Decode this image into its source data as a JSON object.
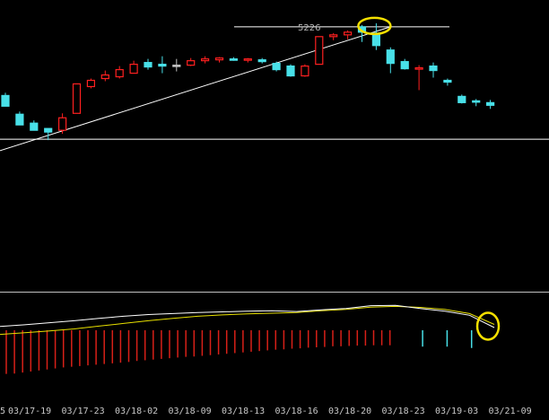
{
  "chart_data": {
    "type": "candlestick",
    "title": "",
    "xlabel": "",
    "ylabel": "",
    "ylim": [
      4920,
      5240
    ],
    "grid": false,
    "price_peak_label": "5226",
    "x_ticks": [
      "03/17-19",
      "03/17-23",
      "03/18-02",
      "03/18-09",
      "03/18-13",
      "03/18-16",
      "03/18-20",
      "03/18-23",
      "03/19-03",
      "03/21-09"
    ],
    "x_tick_left_fragment": "5",
    "reference_levels": [
      5222,
      5096
    ],
    "trendline": {
      "from": {
        "index": -1,
        "price": 5080
      },
      "to": {
        "index": 27,
        "price": 5222
      }
    },
    "candles": [
      {
        "o": 5145,
        "h": 5148,
        "l": 5133,
        "c": 5133
      },
      {
        "o": 5124,
        "h": 5127,
        "l": 5112,
        "c": 5112
      },
      {
        "o": 5114,
        "h": 5117,
        "l": 5106,
        "c": 5106
      },
      {
        "o": 5108,
        "h": 5108,
        "l": 5095,
        "c": 5104
      },
      {
        "o": 5106,
        "h": 5125,
        "l": 5102,
        "c": 5120
      },
      {
        "o": 5125,
        "h": 5158,
        "l": 5125,
        "c": 5158
      },
      {
        "o": 5155,
        "h": 5164,
        "l": 5153,
        "c": 5162
      },
      {
        "o": 5164,
        "h": 5173,
        "l": 5161,
        "c": 5168
      },
      {
        "o": 5166,
        "h": 5178,
        "l": 5164,
        "c": 5174
      },
      {
        "o": 5170,
        "h": 5184,
        "l": 5170,
        "c": 5180
      },
      {
        "o": 5182,
        "h": 5186,
        "l": 5174,
        "c": 5177
      },
      {
        "o": 5180,
        "h": 5189,
        "l": 5170,
        "c": 5178
      },
      {
        "o": 5179,
        "h": 5186,
        "l": 5172,
        "c": 5179
      },
      {
        "o": 5179,
        "h": 5187,
        "l": 5178,
        "c": 5184
      },
      {
        "o": 5184,
        "h": 5189,
        "l": 5181,
        "c": 5186
      },
      {
        "o": 5185,
        "h": 5188,
        "l": 5182,
        "c": 5187
      },
      {
        "o": 5186,
        "h": 5188,
        "l": 5184,
        "c": 5185
      },
      {
        "o": 5185,
        "h": 5187,
        "l": 5182,
        "c": 5186
      },
      {
        "o": 5185,
        "h": 5187,
        "l": 5181,
        "c": 5183
      },
      {
        "o": 5181,
        "h": 5183,
        "l": 5172,
        "c": 5174
      },
      {
        "o": 5178,
        "h": 5180,
        "l": 5166,
        "c": 5167
      },
      {
        "o": 5167,
        "h": 5180,
        "l": 5166,
        "c": 5178
      },
      {
        "o": 5180,
        "h": 5211,
        "l": 5180,
        "c": 5211
      },
      {
        "o": 5211,
        "h": 5215,
        "l": 5207,
        "c": 5213
      },
      {
        "o": 5213,
        "h": 5218,
        "l": 5208,
        "c": 5216
      },
      {
        "o": 5222,
        "h": 5224,
        "l": 5205,
        "c": 5216
      },
      {
        "o": 5215,
        "h": 5226,
        "l": 5196,
        "c": 5201
      },
      {
        "o": 5196,
        "h": 5199,
        "l": 5170,
        "c": 5181
      },
      {
        "o": 5183,
        "h": 5186,
        "l": 5174,
        "c": 5175
      },
      {
        "o": 5175,
        "h": 5179,
        "l": 5151,
        "c": 5176
      },
      {
        "o": 5178,
        "h": 5182,
        "l": 5165,
        "c": 5173
      },
      {
        "o": 5162,
        "h": 5164,
        "l": 5156,
        "c": 5160
      },
      {
        "o": 5144,
        "h": 5146,
        "l": 5136,
        "c": 5137
      },
      {
        "o": 5139,
        "h": 5141,
        "l": 5133,
        "c": 5138
      },
      {
        "o": 5137,
        "h": 5140,
        "l": 5130,
        "c": 5134
      }
    ],
    "indicator": {
      "ylim": [
        -2,
        1
      ],
      "line1": [
        0.11,
        0.16,
        0.22,
        0.28,
        0.35,
        0.41,
        0.46,
        0.49,
        0.52,
        0.54,
        0.56,
        0.57,
        0.55,
        0.6,
        0.64,
        0.72,
        0.73,
        0.64,
        0.56,
        0.44,
        0.08
      ],
      "line2": [
        -0.12,
        -0.07,
        -0.02,
        0.04,
        0.12,
        0.2,
        0.28,
        0.35,
        0.41,
        0.45,
        0.48,
        0.5,
        0.52,
        0.57,
        0.61,
        0.68,
        0.7,
        0.67,
        0.61,
        0.49,
        0.17
      ],
      "bars": [
        -1.28,
        -1.27,
        -1.24,
        -1.21,
        -1.18,
        -1.15,
        -1.12,
        -1.09,
        -1.07,
        -1.05,
        -1.03,
        -1.01,
        -0.99,
        -0.97,
        -0.95,
        -0.93,
        -0.9,
        -0.88,
        -0.86,
        -0.84,
        -0.82,
        -0.8,
        -0.78,
        -0.77,
        -0.75,
        -0.73,
        -0.71,
        -0.69,
        -0.67,
        -0.65,
        -0.63,
        -0.61,
        -0.59,
        -0.57,
        -0.56,
        -0.54,
        -0.53,
        -0.51,
        -0.5,
        -0.49,
        -0.47,
        -0.47,
        -0.46,
        -0.45,
        -0.45,
        -0.44,
        -0.44,
        -0.44,
        0.0,
        0.0,
        0.0,
        -0.48,
        0.0,
        0.0,
        -0.48,
        0.0,
        0.0,
        -0.52,
        0.0,
        0.0
      ]
    },
    "annotations": [
      {
        "shape": "ellipse",
        "color": "#f5e000",
        "target": "price-peak"
      },
      {
        "shape": "ellipse",
        "color": "#f5e000",
        "target": "indicator-line-end"
      }
    ]
  },
  "colors": {
    "background": "#000000",
    "up": "#ff2020",
    "down": "#48e0e8",
    "doji": "#c0c0c0",
    "line": "#ffffff",
    "indicator_line1": "#ffffff",
    "indicator_line2": "#e8e000",
    "bar_negative": "#d82018",
    "bar_cyan": "#48e0e8",
    "annotation": "#f5e000",
    "axis_text": "#c8c8c8",
    "divider": "#c0c0c0"
  }
}
